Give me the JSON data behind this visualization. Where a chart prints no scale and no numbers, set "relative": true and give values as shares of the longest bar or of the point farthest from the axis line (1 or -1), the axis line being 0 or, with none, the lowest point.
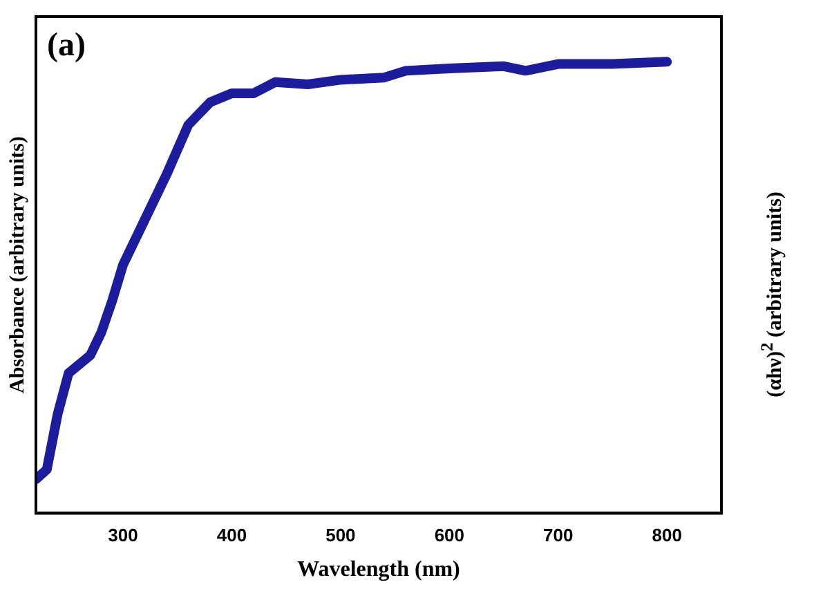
{
  "chart_data": {
    "type": "line",
    "xlabel": "Wavelength (nm)",
    "ylabel": "Absorbance (arbitrary units)",
    "y2label": "(αhν)$^{2}$ (arbitrary units)",
    "annotations": [
      "(a)"
    ],
    "relative": true,
    "xlim": [
      220,
      850
    ],
    "xticks": [
      300,
      400,
      500,
      600,
      700,
      800
    ],
    "grid": false,
    "legend": false,
    "series": [
      {
        "color": "#1c1c9c",
        "x": [
          220,
          230,
          240,
          250,
          260,
          270,
          280,
          290,
          300,
          320,
          340,
          360,
          380,
          400,
          420,
          440,
          470,
          500,
          540,
          560,
          600,
          650,
          670,
          700,
          750,
          800
        ],
        "values": [
          0.075,
          0.097,
          0.22,
          0.31,
          0.33,
          0.35,
          0.4,
          0.47,
          0.55,
          0.65,
          0.75,
          0.86,
          0.91,
          0.93,
          0.93,
          0.955,
          0.95,
          0.96,
          0.965,
          0.98,
          0.985,
          0.99,
          0.98,
          0.995,
          0.995,
          1
        ]
      }
    ]
  }
}
